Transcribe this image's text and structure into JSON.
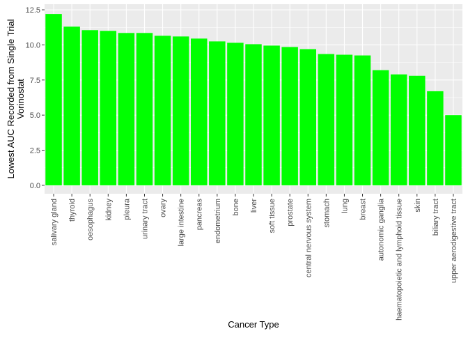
{
  "chart_data": {
    "type": "bar",
    "xlabel": "Cancer Type",
    "ylabel_lines": [
      "Lowest AUC Recorded from Single Trial",
      "Vorinostat"
    ],
    "ylim": [
      -0.6,
      12.9
    ],
    "yticks": [
      0.0,
      2.5,
      5.0,
      7.5,
      10.0,
      12.5
    ],
    "ytick_labels": [
      "0.0",
      "2.5",
      "5.0",
      "7.5",
      "10.0",
      "12.5"
    ],
    "grid": true,
    "legend": "none",
    "bar_color": "#00ff00",
    "panel_color": "#ebebeb",
    "categories": [
      "salivary gland",
      "thyroid",
      "oesophagus",
      "kidney",
      "pleura",
      "urinary tract",
      "ovary",
      "large intestine",
      "pancreas",
      "endometrium",
      "bone",
      "liver",
      "soft tissue",
      "prostate",
      "central nervous system",
      "stomach",
      "lung",
      "breast",
      "autonomic ganglia",
      "haematopoietic and lymphoid tissue",
      "skin",
      "biliary tract",
      "upper aerodigestive tract"
    ],
    "values": [
      12.2,
      11.3,
      11.05,
      11.0,
      10.85,
      10.85,
      10.65,
      10.6,
      10.45,
      10.25,
      10.15,
      10.05,
      9.95,
      9.85,
      9.7,
      9.35,
      9.3,
      9.25,
      8.2,
      7.9,
      7.8,
      6.7,
      5.0
    ]
  }
}
